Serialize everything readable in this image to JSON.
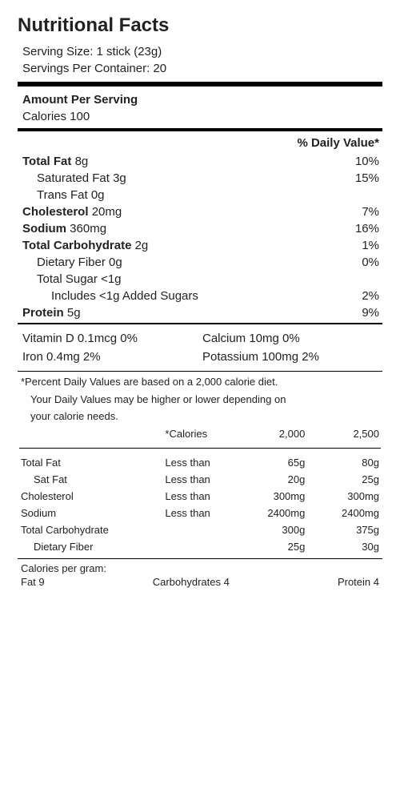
{
  "title": "Nutritional Facts",
  "serving": {
    "size_label": "Serving Size: 1 stick (23g)",
    "per_container_label": "Servings Per Container: 20"
  },
  "amount_heading": "Amount Per Serving",
  "calories_line": "Calories 100",
  "dv_header": "% Daily Value*",
  "nutrients": {
    "total_fat": {
      "label": "Total Fat",
      "amount": "8g",
      "dv": "10%"
    },
    "sat_fat": {
      "label": "Saturated Fat",
      "amount": "3g",
      "dv": "15%"
    },
    "trans_fat": {
      "label": "Trans Fat",
      "amount": "0g"
    },
    "cholesterol": {
      "label": "Cholesterol",
      "amount": "20mg",
      "dv": "7%"
    },
    "sodium": {
      "label": "Sodium",
      "amount": "360mg",
      "dv": "16%"
    },
    "total_carb": {
      "label": "Total Carbohydrate",
      "amount": "2g",
      "dv": "1%"
    },
    "fiber": {
      "label": "Dietary Fiber",
      "amount": "0g",
      "dv": "0%"
    },
    "sugar": {
      "label": "Total Sugar",
      "amount": "<1g"
    },
    "added_sugar": {
      "label": "Includes <1g Added Sugars",
      "dv": "2%"
    },
    "protein": {
      "label": "Protein",
      "amount": "5g",
      "dv": "9%"
    }
  },
  "vitamins": {
    "vit_d": "Vitamin D 0.1mcg 0%",
    "calcium": "Calcium 10mg 0%",
    "iron": "Iron 0.4mg 2%",
    "potassium": "Potassium 100mg 2%"
  },
  "footnote": {
    "line1": "*Percent Daily Values are based on a 2,000 calorie diet.",
    "line2": "Your Daily Values may be higher or lower depending on",
    "line3": "your calorie needs."
  },
  "dv_table": {
    "header": {
      "cal": "*Calories",
      "v1": "2,000",
      "v2": "2,500"
    },
    "rows": {
      "total_fat": {
        "name": "Total Fat",
        "qual": "Less than",
        "v1": "65g",
        "v2": "80g"
      },
      "sat_fat": {
        "name": "Sat Fat",
        "qual": "Less than",
        "v1": "20g",
        "v2": "25g"
      },
      "cholesterol": {
        "name": "Cholesterol",
        "qual": "Less than",
        "v1": "300mg",
        "v2": "300mg"
      },
      "sodium": {
        "name": "Sodium",
        "qual": "Less than",
        "v1": "2400mg",
        "v2": "2400mg"
      },
      "total_carb": {
        "name": "Total Carbohydrate",
        "qual": "",
        "v1": "300g",
        "v2": "375g"
      },
      "fiber": {
        "name": "Dietary Fiber",
        "qual": "",
        "v1": "25g",
        "v2": "30g"
      }
    }
  },
  "cpg": {
    "label": "Calories per gram:",
    "fat": "Fat 9",
    "carb": "Carbohydrates 4",
    "protein": "Protein 4"
  }
}
